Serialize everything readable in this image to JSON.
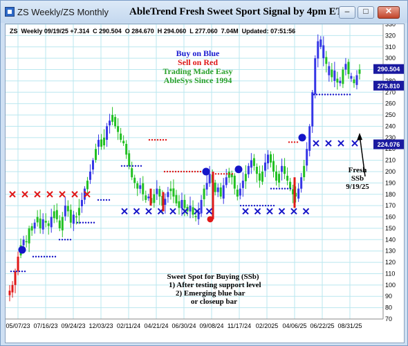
{
  "window": {
    "title": "ZS Weekly/ZS Monthly",
    "chart_title": "AbleTrend Fresh Sweet Sport Signal by 4pm ET",
    "buttons": {
      "minimize": "–",
      "restore": "□",
      "close": "✕"
    }
  },
  "info_line": "ZS  Weekly 09/19/25 +7.314  C 290.504  O 284.670  H 294.060  L 277.060  7.04M  Updated: 07:51:56",
  "legend": {
    "buy": "Buy on Blue",
    "sell": "Sell on Red",
    "trading": "Trading Made Easy",
    "since": "AbleSys Since 1994"
  },
  "annotations": {
    "fresh": [
      "Fresh",
      "SSb",
      "9/19/25"
    ],
    "sweet_spot": [
      "Sweet Spot for Buying (SSb)",
      "1) After testing support level",
      "2) Emerging blue bar",
      "or closeup bar"
    ]
  },
  "price_tags": [
    "290.504",
    "275.810",
    "224.076"
  ],
  "colors": {
    "up": "#3535e6",
    "down": "#e01818",
    "neutral": "#22c022",
    "grid": "#b9e7ef",
    "buy": "#1515c8",
    "sell": "#e01818",
    "trading": "#2aa02a"
  },
  "chart_data": {
    "type": "candlestick",
    "symbol": "ZS",
    "interval": "Weekly",
    "ylim": [
      70,
      330
    ],
    "y_ticks": [
      "330",
      "320",
      "310",
      "300",
      "290",
      "280",
      "270",
      "260",
      "250",
      "240",
      "230",
      "220",
      "210",
      "200",
      "190",
      "180",
      "170",
      "160",
      "150",
      "140",
      "130",
      "120",
      "110",
      "100",
      "90",
      "80",
      "70"
    ],
    "x_ticks": [
      "05/07/23",
      "07/16/23",
      "09/24/23",
      "12/03/23",
      "02/11/24",
      "04/21/24",
      "06/30/24",
      "09/08/24",
      "11/17/24",
      "02/2025",
      "04/06/25",
      "06/22/25",
      "08/31/25"
    ],
    "signals": {
      "red_x_level": 180,
      "blue_x_level_1": 165,
      "blue_x_level_2": 225,
      "buy_dots": [
        {
          "at": "05/2023",
          "price": 131
        },
        {
          "at": "09/2024",
          "price": 200
        },
        {
          "at": "10/2024",
          "price": 202
        },
        {
          "at": "04/2025",
          "price": 230
        }
      ],
      "sell_dots": [
        {
          "at": "09/2024",
          "price": 158
        }
      ]
    }
  }
}
